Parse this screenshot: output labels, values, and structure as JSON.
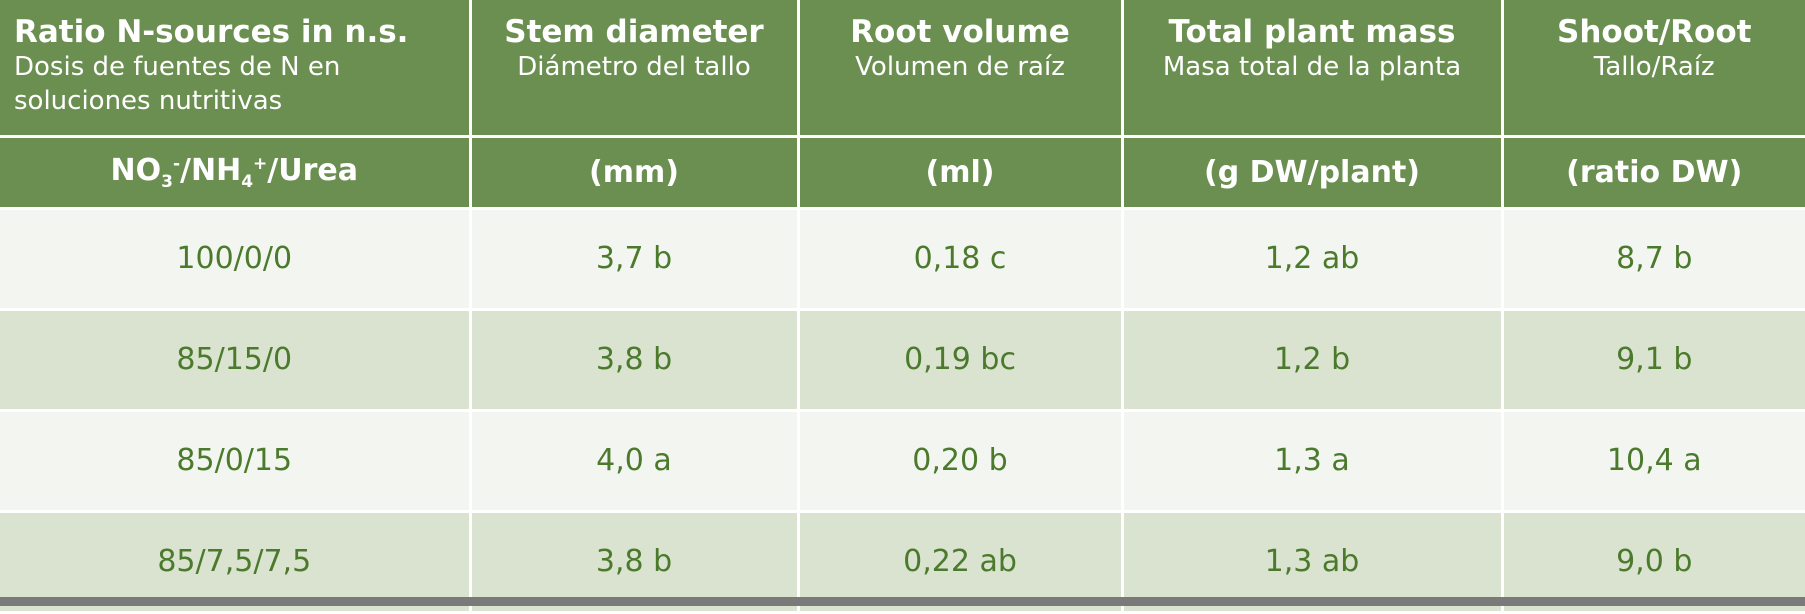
{
  "table": {
    "header": [
      {
        "en": "Ratio N-sources in n.s.",
        "es": "Dosis de fuentes de N en soluciones nutritivas"
      },
      {
        "en": "Stem diameter",
        "es": "Diámetro del tallo"
      },
      {
        "en": "Root volume",
        "es": "Volumen de raíz"
      },
      {
        "en": "Total plant mass",
        "es": "Masa total de la planta"
      },
      {
        "en": "Shoot/Root",
        "es": "Tallo/Raíz"
      }
    ],
    "units": [
      [
        "NO",
        "3",
        "-",
        "/NH",
        "4",
        "+",
        "/Urea"
      ],
      "(mm)",
      "(ml)",
      "(g DW/plant)",
      "(ratio DW)"
    ],
    "rows": [
      [
        "100/0/0",
        "3,7 b",
        "0,18 c",
        "1,2 ab",
        "8,7 b"
      ],
      [
        "85/15/0",
        "3,8 b",
        "0,19 bc",
        "1,2 b",
        "9,1 b"
      ],
      [
        "85/0/15",
        "4,0 a",
        "0,20 b",
        "1,3 a",
        "10,4 a"
      ],
      [
        "85/7,5/7,5",
        "3,8 b",
        "0,22 ab",
        "1,3 ab",
        "9,0 b"
      ]
    ]
  }
}
